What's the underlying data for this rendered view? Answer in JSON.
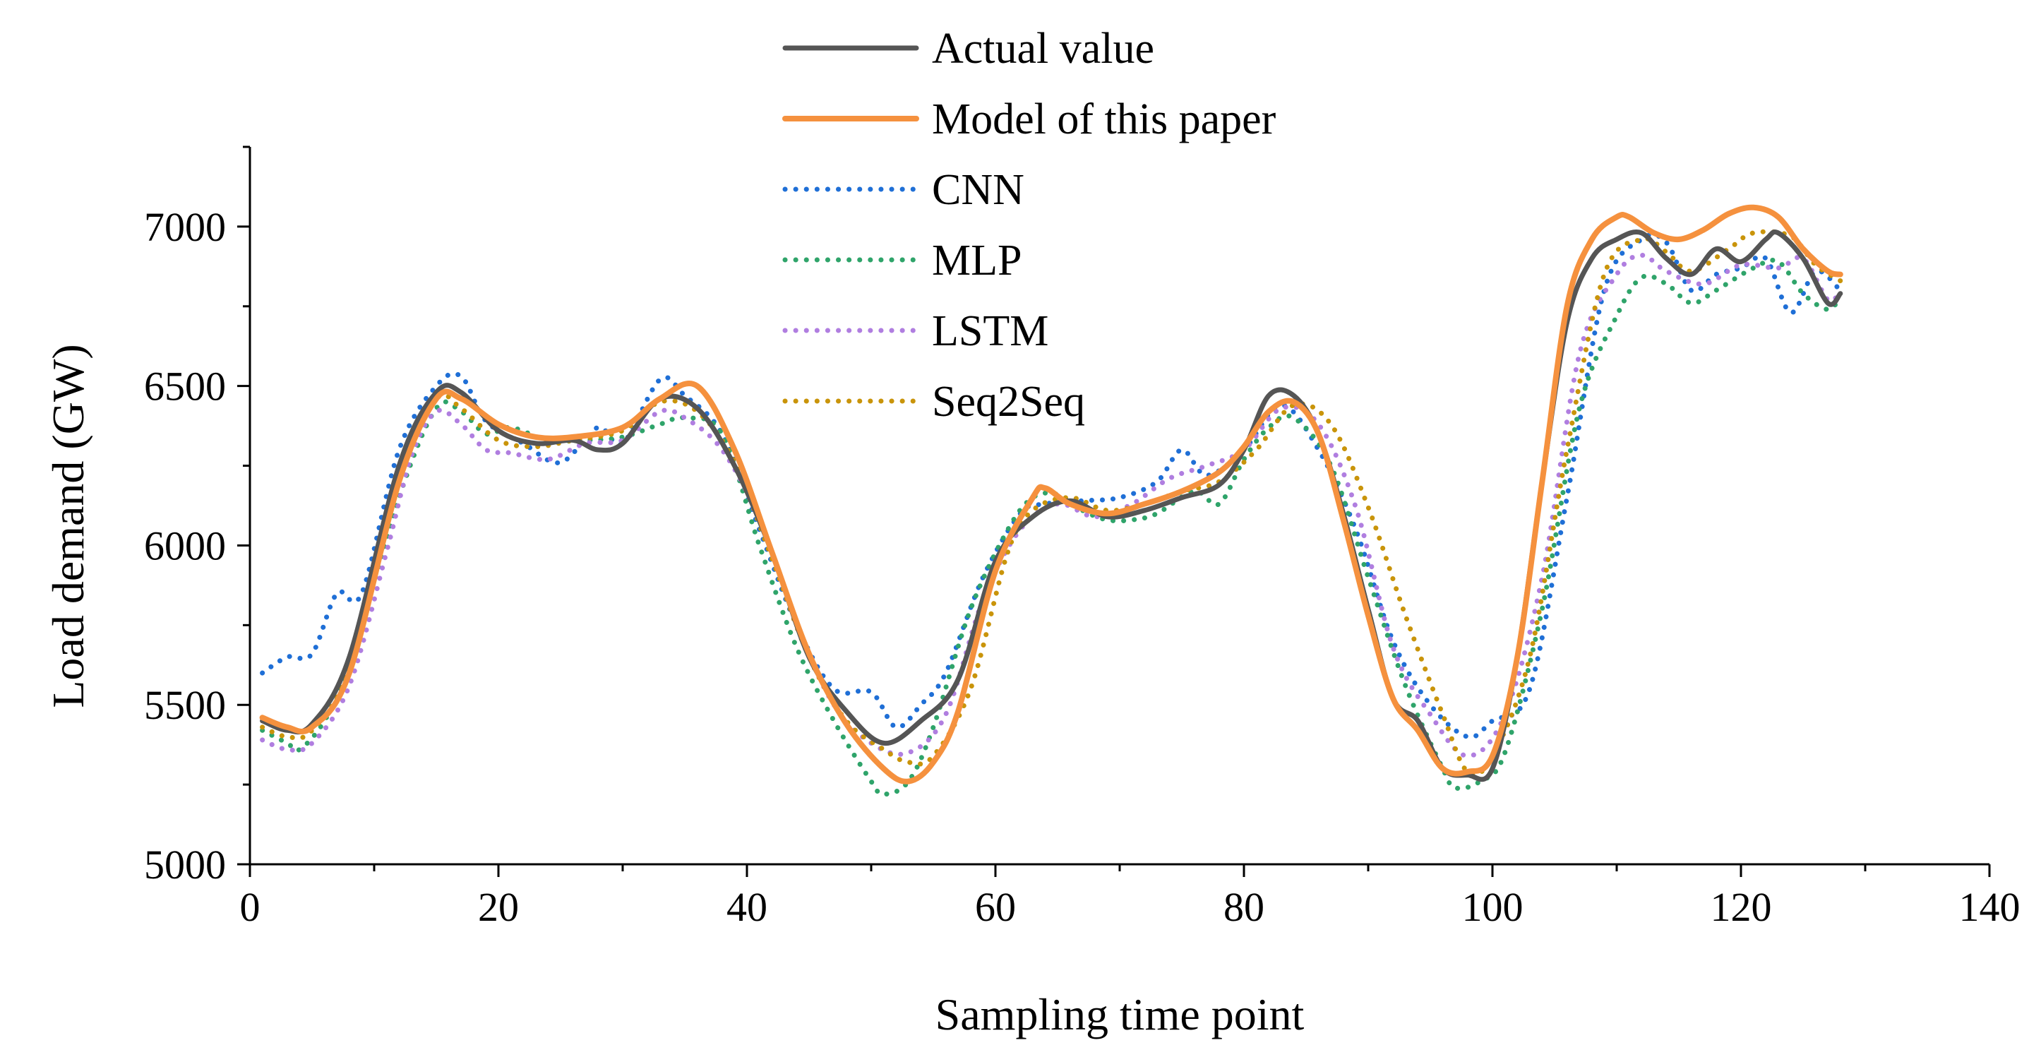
{
  "chart_data": {
    "type": "line",
    "title": "",
    "xlabel": "Sampling time point",
    "ylabel": "Load demand (GW)",
    "xlim": [
      0,
      140
    ],
    "ylim": [
      5000,
      7250
    ],
    "xticks": [
      0,
      20,
      40,
      60,
      80,
      100,
      120,
      140
    ],
    "yticks": [
      5000,
      5500,
      6000,
      6500,
      7000
    ],
    "x_tick_labels": [
      "0",
      "20",
      "40",
      "60",
      "80",
      "100",
      "120",
      "140"
    ],
    "y_tick_labels": [
      "5000",
      "5500",
      "6000",
      "6500",
      "7000"
    ],
    "grid": false,
    "legend_position": "top-center",
    "series": [
      {
        "name": "Actual value",
        "color": "#555555",
        "style": "solid",
        "x": [
          1,
          3,
          5,
          8,
          12,
          15,
          17,
          20,
          23,
          26,
          28,
          30,
          33,
          36,
          39,
          42,
          45,
          48,
          51,
          54,
          57,
          60,
          63,
          66,
          69,
          72,
          75,
          78,
          80,
          82,
          84,
          86,
          88,
          90,
          92,
          94,
          96,
          98,
          100,
          102,
          104,
          106,
          108,
          110,
          112,
          114,
          116,
          118,
          120,
          122,
          123,
          125,
          127,
          128
        ],
        "values": [
          5450,
          5420,
          5440,
          5650,
          6250,
          6480,
          6480,
          6360,
          6320,
          6330,
          6300,
          6320,
          6460,
          6430,
          6250,
          5980,
          5650,
          5480,
          5380,
          5450,
          5580,
          5950,
          6090,
          6140,
          6090,
          6110,
          6150,
          6190,
          6300,
          6470,
          6470,
          6350,
          6100,
          5800,
          5520,
          5450,
          5300,
          5280,
          5300,
          5650,
          6200,
          6700,
          6900,
          6960,
          6980,
          6900,
          6850,
          6930,
          6890,
          6960,
          6980,
          6900,
          6760,
          6790
        ]
      },
      {
        "name": "Model of this paper",
        "color": "#f5913e",
        "style": "solid",
        "x": [
          1,
          3,
          5,
          8,
          12,
          15,
          17,
          20,
          23,
          26,
          30,
          33,
          36,
          39,
          42,
          45,
          48,
          51,
          53,
          55,
          57,
          60,
          63,
          64,
          66,
          69,
          72,
          75,
          78,
          80,
          82,
          84,
          86,
          88,
          90,
          92,
          94,
          96,
          98,
          100,
          102,
          104,
          106,
          108,
          110,
          111,
          113,
          115,
          117,
          119,
          121,
          123,
          125,
          127,
          128
        ],
        "values": [
          5460,
          5430,
          5430,
          5600,
          6200,
          6460,
          6460,
          6380,
          6340,
          6340,
          6370,
          6460,
          6500,
          6300,
          5980,
          5660,
          5440,
          5300,
          5260,
          5320,
          5480,
          5920,
          6150,
          6180,
          6130,
          6100,
          6130,
          6170,
          6230,
          6310,
          6420,
          6450,
          6350,
          6080,
          5780,
          5520,
          5420,
          5300,
          5290,
          5340,
          5650,
          6200,
          6750,
          6960,
          7030,
          7030,
          6980,
          6960,
          6990,
          7040,
          7060,
          7030,
          6930,
          6860,
          6850
        ]
      },
      {
        "name": "CNN",
        "color": "#1f6fd6",
        "style": "dotted",
        "x": [
          1,
          3,
          5,
          7,
          9,
          12,
          15,
          17,
          19,
          22,
          25,
          28,
          30,
          33,
          35,
          38,
          41,
          44,
          47,
          50,
          52,
          54,
          56,
          59,
          62,
          64,
          67,
          70,
          73,
          75,
          77,
          80,
          83,
          86,
          89,
          92,
          95,
          98,
          100,
          103,
          106,
          109,
          112,
          114,
          116,
          118,
          120,
          122,
          124,
          126,
          128
        ],
        "values": [
          5600,
          5650,
          5660,
          5850,
          5850,
          6300,
          6500,
          6530,
          6390,
          6320,
          6260,
          6370,
          6320,
          6520,
          6470,
          6350,
          6050,
          5750,
          5550,
          5540,
          5430,
          5500,
          5600,
          5900,
          6100,
          6130,
          6140,
          6150,
          6200,
          6300,
          6220,
          6300,
          6440,
          6300,
          6050,
          5700,
          5500,
          5400,
          5450,
          5550,
          6150,
          6800,
          6960,
          6950,
          6800,
          6850,
          6870,
          6900,
          6730,
          6860,
          6800
        ]
      },
      {
        "name": "MLP",
        "color": "#2fa46a",
        "style": "dotted",
        "x": [
          1,
          3,
          4,
          6,
          8,
          12,
          15,
          17,
          19,
          21,
          24,
          27,
          30,
          33,
          35,
          38,
          41,
          44,
          47,
          50,
          51,
          53,
          55,
          58,
          61,
          63,
          65,
          67,
          69,
          71,
          73,
          76,
          78,
          80,
          82,
          84,
          87,
          90,
          93,
          96,
          97,
          99,
          101,
          104,
          107,
          110,
          112,
          114,
          116,
          118,
          121,
          123,
          125,
          127,
          128
        ],
        "values": [
          5420,
          5380,
          5360,
          5450,
          5620,
          6150,
          6430,
          6420,
          6350,
          6370,
          6330,
          6330,
          6340,
          6380,
          6400,
          6350,
          6000,
          5680,
          5450,
          5260,
          5220,
          5260,
          5430,
          5800,
          6050,
          6150,
          6160,
          6110,
          6080,
          6080,
          6100,
          6170,
          6130,
          6270,
          6370,
          6400,
          6250,
          5900,
          5560,
          5300,
          5240,
          5260,
          5350,
          5800,
          6430,
          6720,
          6840,
          6820,
          6760,
          6800,
          6870,
          6890,
          6790,
          6740,
          6780
        ]
      },
      {
        "name": "LSTM",
        "color": "#b07ee0",
        "style": "dotted",
        "x": [
          1,
          3,
          5,
          8,
          11,
          13,
          15,
          17,
          19,
          21,
          24,
          27,
          30,
          33,
          35,
          38,
          41,
          44,
          47,
          50,
          53,
          56,
          59,
          62,
          65,
          68,
          71,
          74,
          77,
          80,
          83,
          86,
          89,
          92,
          95,
          98,
          101,
          104,
          107,
          110,
          112,
          114,
          117,
          120,
          123,
          125,
          127,
          128
        ],
        "values": [
          5390,
          5360,
          5380,
          5560,
          5980,
          6280,
          6420,
          6380,
          6300,
          6290,
          6270,
          6320,
          6330,
          6420,
          6400,
          6300,
          6080,
          5750,
          5500,
          5380,
          5350,
          5470,
          5830,
          6050,
          6130,
          6090,
          6130,
          6210,
          6250,
          6300,
          6430,
          6380,
          6120,
          5680,
          5470,
          5340,
          5470,
          5900,
          6600,
          6850,
          6910,
          6860,
          6820,
          6880,
          6870,
          6900,
          6770,
          6800
        ]
      },
      {
        "name": "Seq2Seq",
        "color": "#c9940a",
        "style": "dotted",
        "x": [
          1,
          3,
          5,
          8,
          12,
          15,
          17,
          20,
          23,
          26,
          30,
          33,
          36,
          39,
          42,
          45,
          48,
          51,
          53,
          55,
          58,
          61,
          63,
          66,
          69,
          72,
          75,
          78,
          81,
          84,
          87,
          90,
          93,
          96,
          98,
          100,
          103,
          106,
          109,
          112,
          114,
          116,
          119,
          121,
          124,
          126,
          128
        ],
        "values": [
          5430,
          5400,
          5420,
          5620,
          6230,
          6460,
          6430,
          6330,
          6310,
          6330,
          6360,
          6450,
          6420,
          6260,
          5960,
          5650,
          5450,
          5360,
          5320,
          5340,
          5550,
          5980,
          6110,
          6150,
          6110,
          6130,
          6170,
          6200,
          6300,
          6440,
          6380,
          6120,
          5780,
          5470,
          5290,
          5340,
          5650,
          6300,
          6850,
          6960,
          6920,
          6860,
          6930,
          6980,
          6970,
          6880,
          6830
        ]
      }
    ]
  }
}
